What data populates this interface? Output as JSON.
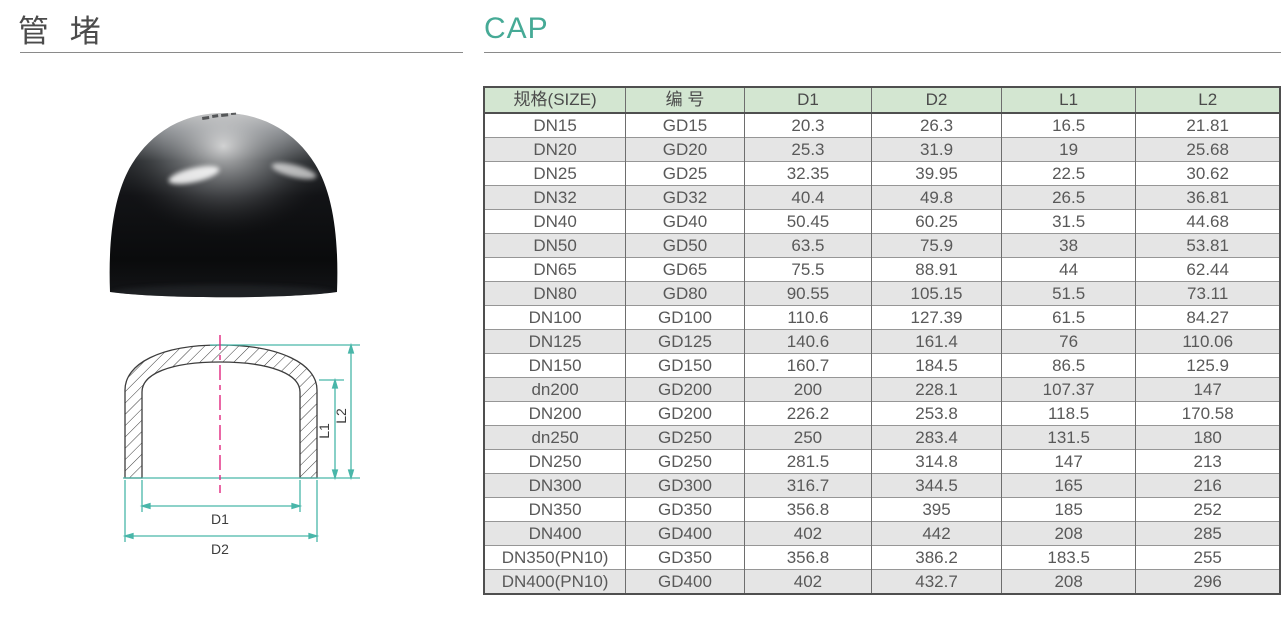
{
  "header": {
    "title_cn": "管 堵",
    "title_en": "CAP",
    "accent_color": "#46aa96"
  },
  "drawing": {
    "labels": {
      "d1": "D1",
      "d2": "D2",
      "l1": "L1",
      "l2": "L2"
    },
    "dimension_line_color": "#49b6a9",
    "centerline_color": "#e0267f",
    "outline_color": "#3c3c3c"
  },
  "table": {
    "header_bg": "#d3e6d1",
    "row_alt_bg": "#e5e5e5",
    "headers": [
      "规格(SIZE)",
      "编 号",
      "D1",
      "D2",
      "L1",
      "L2"
    ],
    "rows": [
      [
        "DN15",
        "GD15",
        "20.3",
        "26.3",
        "16.5",
        "21.81"
      ],
      [
        "DN20",
        "GD20",
        "25.3",
        "31.9",
        "19",
        "25.68"
      ],
      [
        "DN25",
        "GD25",
        "32.35",
        "39.95",
        "22.5",
        "30.62"
      ],
      [
        "DN32",
        "GD32",
        "40.4",
        "49.8",
        "26.5",
        "36.81"
      ],
      [
        "DN40",
        "GD40",
        "50.45",
        "60.25",
        "31.5",
        "44.68"
      ],
      [
        "DN50",
        "GD50",
        "63.5",
        "75.9",
        "38",
        "53.81"
      ],
      [
        "DN65",
        "GD65",
        "75.5",
        "88.91",
        "44",
        "62.44"
      ],
      [
        "DN80",
        "GD80",
        "90.55",
        "105.15",
        "51.5",
        "73.11"
      ],
      [
        "DN100",
        "GD100",
        "110.6",
        "127.39",
        "61.5",
        "84.27"
      ],
      [
        "DN125",
        "GD125",
        "140.6",
        "161.4",
        "76",
        "110.06"
      ],
      [
        "DN150",
        "GD150",
        "160.7",
        "184.5",
        "86.5",
        "125.9"
      ],
      [
        "dn200",
        "GD200",
        "200",
        "228.1",
        "107.37",
        "147"
      ],
      [
        "DN200",
        "GD200",
        "226.2",
        "253.8",
        "118.5",
        "170.58"
      ],
      [
        "dn250",
        "GD250",
        "250",
        "283.4",
        "131.5",
        "180"
      ],
      [
        "DN250",
        "GD250",
        "281.5",
        "314.8",
        "147",
        "213"
      ],
      [
        "DN300",
        "GD300",
        "316.7",
        "344.5",
        "165",
        "216"
      ],
      [
        "DN350",
        "GD350",
        "356.8",
        "395",
        "185",
        "252"
      ],
      [
        "DN400",
        "GD400",
        "402",
        "442",
        "208",
        "285"
      ],
      [
        "DN350(PN10)",
        "GD350",
        "356.8",
        "386.2",
        "183.5",
        "255"
      ],
      [
        "DN400(PN10)",
        "GD400",
        "402",
        "432.7",
        "208",
        "296"
      ]
    ]
  }
}
